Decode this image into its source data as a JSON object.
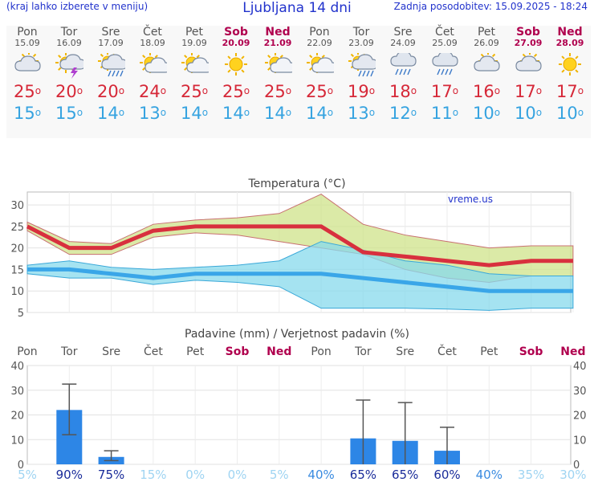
{
  "header": {
    "left_hint": "(kraj lahko izberete v meniju)",
    "title": "Ljubljana 14 dni",
    "updated": "Zadnja posodobitev: 15.09.2025 - 18:24"
  },
  "days": [
    {
      "name": "Pon",
      "date": "15.09",
      "icon": "partly-cloudy-icon",
      "max": "25",
      "min": "15",
      "weekend": false
    },
    {
      "name": "Tor",
      "date": "16.09",
      "icon": "thunderstorm-sun-icon",
      "max": "20",
      "min": "15",
      "weekend": false
    },
    {
      "name": "Sre",
      "date": "17.09",
      "icon": "sun-cloud-rain-icon",
      "max": "20",
      "min": "14",
      "weekend": false
    },
    {
      "name": "Čet",
      "date": "18.09",
      "icon": "sunny-cloud-icon",
      "max": "24",
      "min": "13",
      "weekend": false
    },
    {
      "name": "Pet",
      "date": "19.09",
      "icon": "sunny-cloud-icon",
      "max": "25",
      "min": "14",
      "weekend": false
    },
    {
      "name": "Sob",
      "date": "20.09",
      "icon": "sun-icon",
      "max": "25",
      "min": "14",
      "weekend": true
    },
    {
      "name": "Ned",
      "date": "21.09",
      "icon": "sunny-cloud-icon",
      "max": "25",
      "min": "14",
      "weekend": true
    },
    {
      "name": "Pon",
      "date": "22.09",
      "icon": "sunny-cloud-icon",
      "max": "25",
      "min": "14",
      "weekend": false
    },
    {
      "name": "Tor",
      "date": "23.09",
      "icon": "sun-cloud-rain-icon",
      "max": "19",
      "min": "13",
      "weekend": false
    },
    {
      "name": "Sre",
      "date": "24.09",
      "icon": "cloud-rain-icon",
      "max": "18",
      "min": "12",
      "weekend": false
    },
    {
      "name": "Čet",
      "date": "25.09",
      "icon": "cloud-rain-icon",
      "max": "17",
      "min": "11",
      "weekend": false
    },
    {
      "name": "Pet",
      "date": "26.09",
      "icon": "partly-cloudy-icon",
      "max": "16",
      "min": "10",
      "weekend": false
    },
    {
      "name": "Sob",
      "date": "27.09",
      "icon": "partly-cloudy-icon",
      "max": "17",
      "min": "10",
      "weekend": true
    },
    {
      "name": "Ned",
      "date": "28.09",
      "icon": "sun-icon",
      "max": "17",
      "min": "10",
      "weekend": true
    }
  ],
  "colors": {
    "max": "#d62838",
    "min": "#36a3e0",
    "weekend": "#b0004e",
    "bar": "#2d86e6"
  },
  "chart_data": [
    {
      "type": "line",
      "title": "Temperatura (°C)",
      "watermark": "vreme.us",
      "x": [
        "Pon",
        "Tor",
        "Sre",
        "Čet",
        "Pet",
        "Sob",
        "Ned",
        "Pon",
        "Tor",
        "Sre",
        "Čet",
        "Pet",
        "Sob",
        "Ned"
      ],
      "ylim": [
        5,
        33
      ],
      "yticks": [
        "5",
        "10",
        "15",
        "20",
        "25",
        "30"
      ],
      "series": [
        {
          "role": "max",
          "values": [
            25,
            20,
            20,
            24,
            25,
            25,
            25,
            25,
            19,
            18,
            17,
            16,
            17,
            17
          ]
        },
        {
          "role": "max_upper",
          "values": [
            26,
            21.5,
            21,
            25.5,
            26.5,
            27,
            28,
            32.5,
            25.5,
            23,
            21.5,
            20,
            20.5,
            20.5
          ]
        },
        {
          "role": "max_lower",
          "values": [
            24,
            18.5,
            18.5,
            22.5,
            23.5,
            23,
            21.5,
            20,
            18.5,
            15,
            13,
            12,
            13.5,
            13.5
          ]
        },
        {
          "role": "min",
          "values": [
            15,
            15,
            14,
            13,
            14,
            14,
            14,
            14,
            13,
            12,
            11,
            10,
            10,
            10
          ]
        },
        {
          "role": "min_upper",
          "values": [
            16,
            17,
            15.5,
            15,
            15.5,
            16,
            17,
            21.5,
            19.5,
            17,
            16,
            14,
            13.5,
            13.5
          ]
        },
        {
          "role": "min_lower",
          "values": [
            14,
            13,
            13,
            11.5,
            12.5,
            12,
            11,
            6,
            6,
            6,
            5.8,
            5.5,
            6,
            6
          ]
        }
      ]
    },
    {
      "type": "bar",
      "title": "Padavine (mm) / Verjetnost padavin (%)",
      "x": [
        "Pon",
        "Tor",
        "Sre",
        "Čet",
        "Pet",
        "Sob",
        "Ned",
        "Pon",
        "Tor",
        "Sre",
        "Čet",
        "Pet",
        "Sob",
        "Ned"
      ],
      "ylim": [
        0,
        40
      ],
      "yticks": [
        "0",
        "10",
        "20",
        "30",
        "40"
      ],
      "values": [
        0,
        22,
        3,
        0,
        0,
        0,
        0,
        0,
        10.5,
        9.5,
        5.5,
        0,
        0,
        0
      ],
      "error_low": [
        0,
        12,
        1.5,
        0,
        0,
        0,
        0,
        0,
        0,
        0,
        0,
        0,
        0,
        0
      ],
      "error_high": [
        0,
        32.5,
        5.5,
        0,
        0,
        0,
        0,
        0,
        26,
        25,
        15,
        0,
        0,
        0
      ],
      "probability": [
        "5%",
        "90%",
        "75%",
        "15%",
        "0%",
        "0%",
        "5%",
        "40%",
        "65%",
        "65%",
        "60%",
        "40%",
        "35%",
        "30%"
      ]
    }
  ]
}
